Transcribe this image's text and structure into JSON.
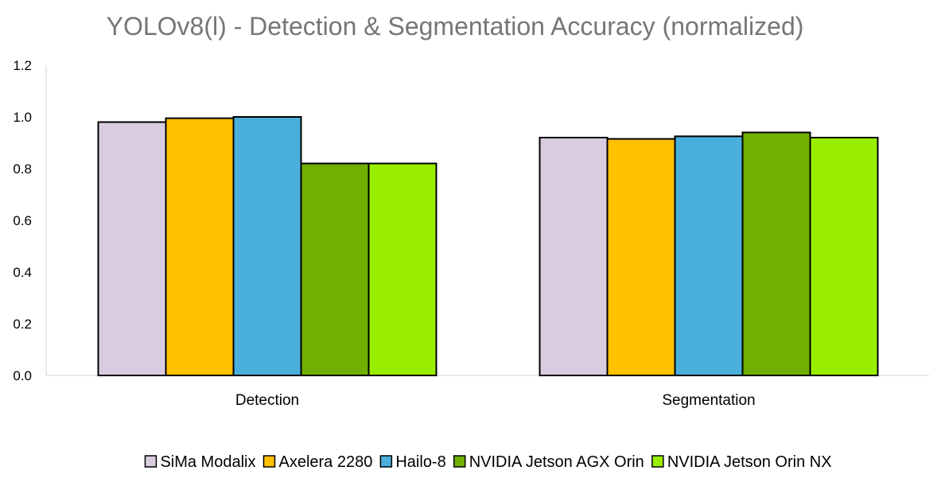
{
  "chart_data": {
    "type": "bar",
    "title": "YOLOv8(l) - Detection & Segmentation Accuracy (normalized)",
    "xlabel": "",
    "ylabel": "",
    "categories": [
      "Detection",
      "Segmentation"
    ],
    "ylim": [
      0,
      1.2
    ],
    "yticks": [
      "0.0",
      "0.2",
      "0.4",
      "0.6",
      "0.8",
      "1.0",
      "1.2"
    ],
    "grid": false,
    "legend_position": "bottom",
    "series": [
      {
        "name": "SiMa Modalix",
        "color": "#D9CCE0",
        "values": [
          0.98,
          0.92
        ]
      },
      {
        "name": "Axelera 2280",
        "color": "#FFC000",
        "values": [
          0.995,
          0.915
        ]
      },
      {
        "name": "Hailo-8",
        "color": "#4AAFDB",
        "values": [
          1.0,
          0.925
        ]
      },
      {
        "name": "NVIDIA Jetson AGX Orin",
        "color": "#70B000",
        "values": [
          0.82,
          0.94
        ]
      },
      {
        "name": "NVIDIA Jetson Orin NX",
        "color": "#99EE00",
        "values": [
          0.82,
          0.92
        ]
      }
    ]
  }
}
